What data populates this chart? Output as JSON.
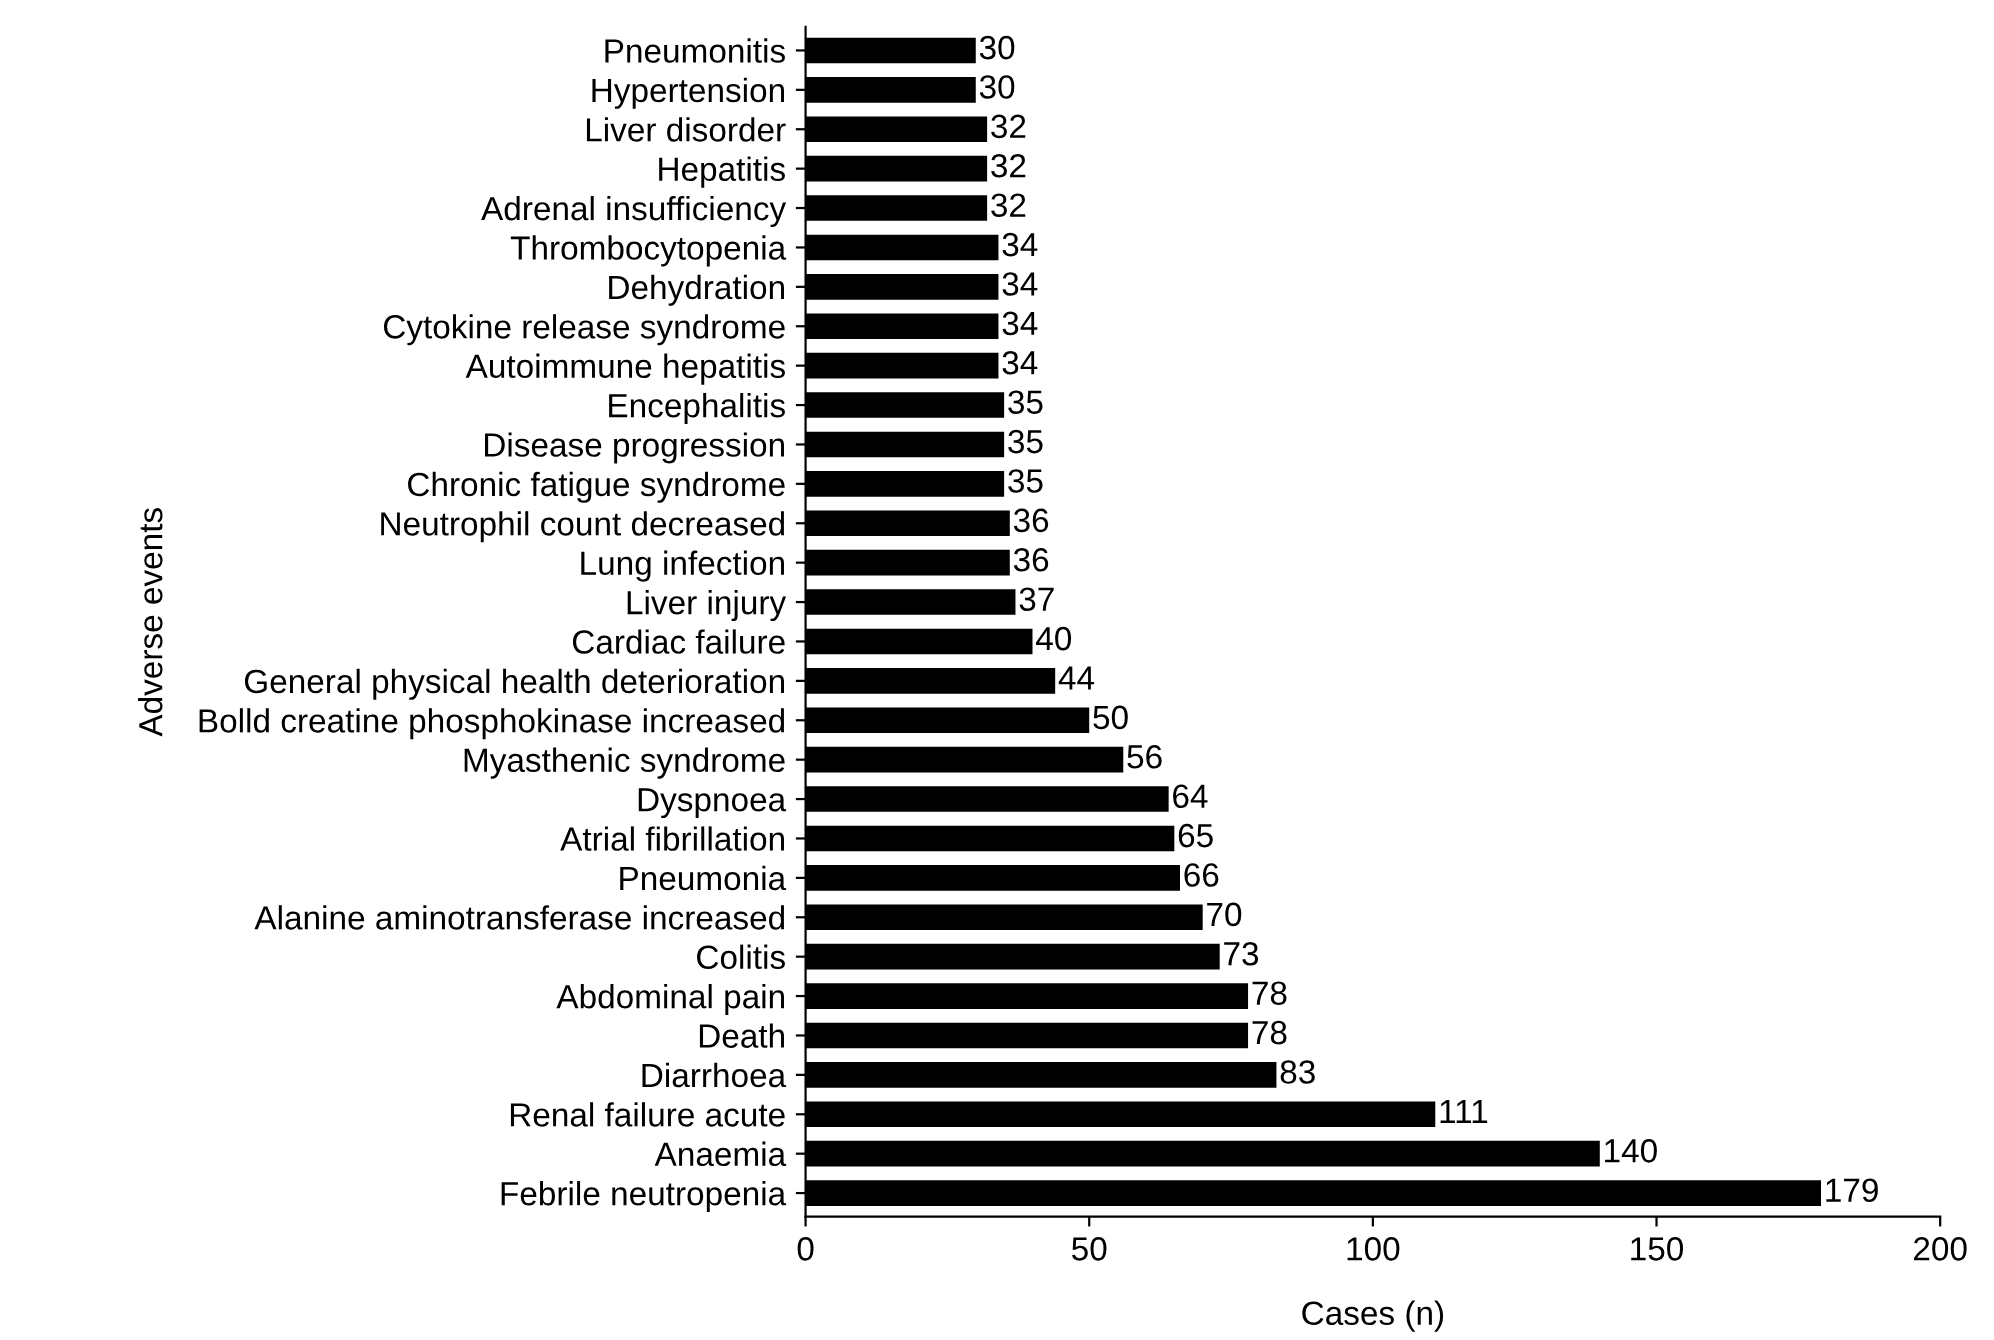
{
  "chart_data": {
    "type": "bar",
    "orientation": "horizontal",
    "xlabel": "Cases (n)",
    "ylabel": "Adverse events",
    "categories": [
      "Pneumonitis",
      "Hypertension",
      "Liver disorder",
      "Hepatitis",
      "Adrenal insufficiency",
      "Thrombocytopenia",
      "Dehydration",
      "Cytokine release syndrome",
      "Autoimmune hepatitis",
      "Encephalitis",
      "Disease progression",
      "Chronic fatigue syndrome",
      "Neutrophil count decreased",
      "Lung infection",
      "Liver injury",
      "Cardiac failure",
      "General physical health deterioration",
      "Bolld creatine phosphokinase increased",
      "Myasthenic syndrome",
      "Dyspnoea",
      "Atrial fibrillation",
      "Pneumonia",
      "Alanine aminotransferase increased",
      "Colitis",
      "Abdominal pain",
      "Death",
      "Diarrhoea",
      "Renal failure acute",
      "Anaemia",
      "Febrile neutropenia"
    ],
    "values": [
      30,
      30,
      32,
      32,
      32,
      34,
      34,
      34,
      34,
      35,
      35,
      35,
      36,
      36,
      37,
      40,
      44,
      50,
      56,
      64,
      65,
      66,
      70,
      73,
      78,
      78,
      83,
      111,
      140,
      179
    ],
    "color": "#000000",
    "data_labels": true,
    "xlim": [
      0,
      200
    ],
    "xticks": [
      0,
      50,
      100,
      150,
      200
    ],
    "grid": false,
    "legend": false
  }
}
